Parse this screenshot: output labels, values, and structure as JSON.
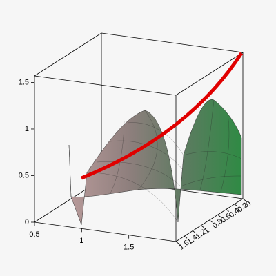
{
  "chart_data": {
    "type": "surface",
    "xlim": [
      0.5,
      2
    ],
    "xticks": [
      0.5,
      1,
      1.5
    ],
    "ylim": [
      0,
      1.6
    ],
    "yticks": [
      0,
      0.2,
      0.4,
      0.6,
      0.8,
      1,
      1.2,
      1.4,
      1.6
    ],
    "zlim": [
      0,
      1.57
    ],
    "zticks": [
      0,
      0.5,
      1,
      1.5
    ]
  }
}
